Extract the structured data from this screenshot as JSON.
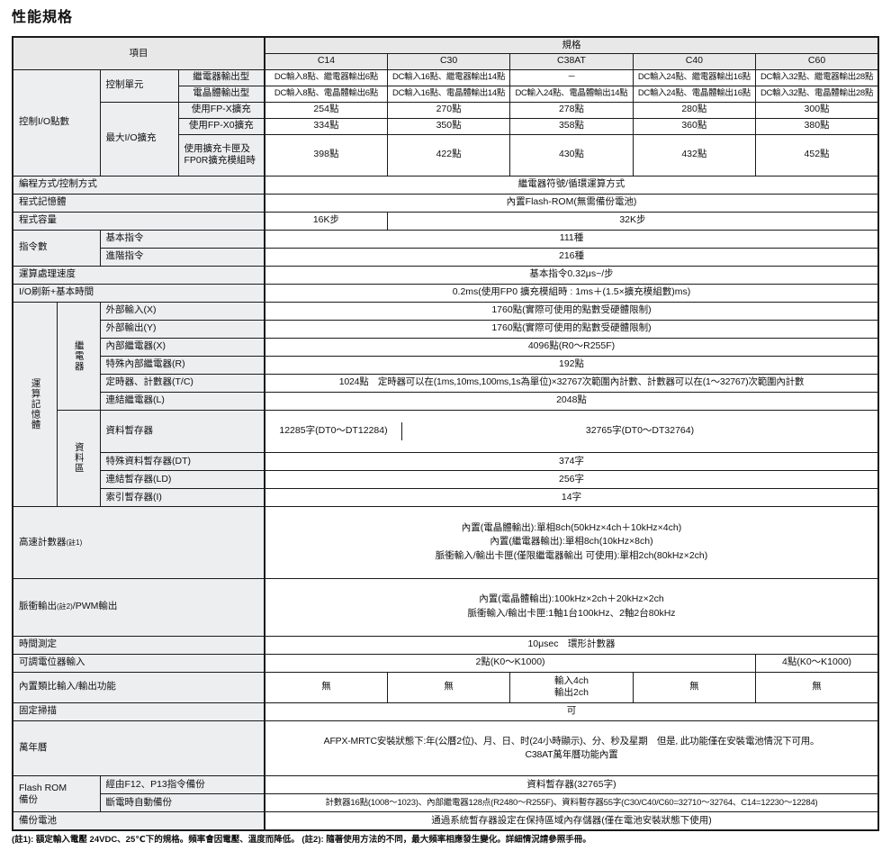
{
  "title": "性能規格",
  "header": {
    "item": "項目",
    "spec": "規格",
    "models": [
      "C14",
      "C30",
      "C38AT",
      "C40",
      "C60"
    ]
  },
  "io": {
    "label": "控制I/O點數",
    "unit": "控制單元",
    "relay_label": "繼電器輸出型",
    "relay": [
      "DC輸入8點、繼電器輸出6點",
      "DC輸入16點、繼電器輸出14點",
      "－",
      "DC輸入24點、繼電器輸出16點",
      "DC輸入32點、繼電器輸出28點"
    ],
    "tr_label": "電晶體輸出型",
    "tr": [
      "DC輸入8點、電晶體輸出6點",
      "DC輸入16點、電晶體輸出14點",
      "DC輸入24點、電晶體輸出14點",
      "DC輸入24點、電晶體輸出16點",
      "DC輸入32點、電晶體輸出28點"
    ],
    "max": "最大I/O擴充",
    "fpx_label": "使用FP-X擴充",
    "fpx": [
      "254點",
      "270點",
      "278點",
      "280點",
      "300點"
    ],
    "fpx0_label": "使用FP-X0擴充",
    "fpx0": [
      "334點",
      "350點",
      "358點",
      "360點",
      "380點"
    ],
    "card_label": "使用擴充卡匣及\nFP0R擴充模組時",
    "card": [
      "398點",
      "422點",
      "430點",
      "432點",
      "452點"
    ]
  },
  "programming": {
    "label": "編程方式/控制方式",
    "value": "繼電器符號/循環運算方式"
  },
  "program_memory": {
    "label": "程式記憶體",
    "value": "內置Flash-ROM(無需備份電池)"
  },
  "program_capacity": {
    "label": "程式容量",
    "c14": "16K步",
    "others": "32K步"
  },
  "instructions": {
    "label": "指令數",
    "basic_label": "基本指令",
    "basic": "111種",
    "advanced_label": "進階指令",
    "advanced": "216種"
  },
  "speed": {
    "label": "運算處理速度",
    "value": "基本指令0.32μs~/步"
  },
  "io_refresh": {
    "label": "I/O刷新+基本時間",
    "value": "0.2ms(使用FP0 擴充模組時 : 1ms＋(1.5×擴充模組數)ms)"
  },
  "memory": {
    "label": "運算記憶體",
    "relay_group": "繼電器",
    "data_group": "資料區",
    "rows": [
      {
        "label": "外部輸入(X)",
        "value": "1760點(實際可使用的點數受硬體限制)"
      },
      {
        "label": "外部輸出(Y)",
        "value": "1760點(實際可使用的點數受硬體限制)"
      },
      {
        "label": "內部繼電器(X)",
        "value": "4096點(R0～R255F)"
      },
      {
        "label": "特殊內部繼電器(R)",
        "value": "192點"
      },
      {
        "label": "定時器、計數器(T/C)",
        "value": "1024點　定時器可以在(1ms,10ms,100ms,1s為單位)×32767次範圍內計數、計數器可以在(1～32767)次範圍內計數"
      },
      {
        "label": "連結繼電器(L)",
        "value": "2048點"
      },
      {
        "label": "資料暫存器",
        "c14": "12285字(DT0～DT12284)",
        "value": "32765字(DT0～DT32764)"
      },
      {
        "label": "特殊資料暫存器(DT)",
        "value": "374字"
      },
      {
        "label": "連結暫存器(LD)",
        "value": "256字"
      },
      {
        "label": "索引暫存器(I)",
        "value": "14字"
      }
    ]
  },
  "high_speed_counter": {
    "label": "高速計數器",
    "note": "(註1)",
    "lines": [
      "內置(電晶體輸出):單相8ch(50kHz×4ch＋10kHz×4ch)",
      "內置(繼電器輸出):單相8ch(10kHz×8ch)",
      "脈衝輸入/輸出卡匣(僅限繼電器輸出 可使用):單相2ch(80kHz×2ch)"
    ]
  },
  "pulse_output": {
    "label_a": "脈衝輸出",
    "note": "(註2)",
    "label_b": "/PWM輸出",
    "lines": [
      "內置(電晶體輸出):100kHz×2ch＋20kHz×2ch",
      "脈衝輸入/輸出卡匣:1軸1台100kHz、2軸2台80kHz"
    ]
  },
  "time_measure": {
    "label": "時間測定",
    "value": "10μsec　環形計數器"
  },
  "potentiometer": {
    "label": "可調電位器輸入",
    "value_a": "2點(K0～K1000)",
    "value_c60": "4點(K0～K1000)"
  },
  "analog": {
    "label": "內置類比輸入/輸出功能",
    "values": [
      "無",
      "無",
      "輸入4ch\n輸出2ch",
      "無",
      "無"
    ]
  },
  "constant_scan": {
    "label": "固定掃描",
    "value": "可"
  },
  "calendar": {
    "label": "萬年曆",
    "lines": [
      "AFPX-MRTC安裝狀態下:年(公曆2位)、月、日、时(24小時顯示)、分、秒及星期　但是, 此功能僅在安裝電池情況下可用。",
      "C38AT萬年曆功能內置"
    ]
  },
  "flash_backup": {
    "label": "Flash ROM\n備份",
    "f12_label": "經由F12、P13指令備份",
    "f12": "資料暫存器(32765字)",
    "auto_label": "斷電時自動備份",
    "auto": "計數器16點(1008～1023)、內部繼電器128点(R2480～R255F)、資料暫存器55字(C30/C40/C60=32710～32764、C14=12230～12284)"
  },
  "battery": {
    "label": "備份電池",
    "value": "通過系統暫存器設定在保持區域內存儲器(僅在電池安裝狀態下使用)"
  },
  "footnote": "(註1): 額定輸入電壓 24VDC、25℃下的規格。頻率會因電壓、溫度而降低。 (註2): 隨著使用方法的不同，最大頻率相應發生變化。詳細情況請參照手冊。"
}
